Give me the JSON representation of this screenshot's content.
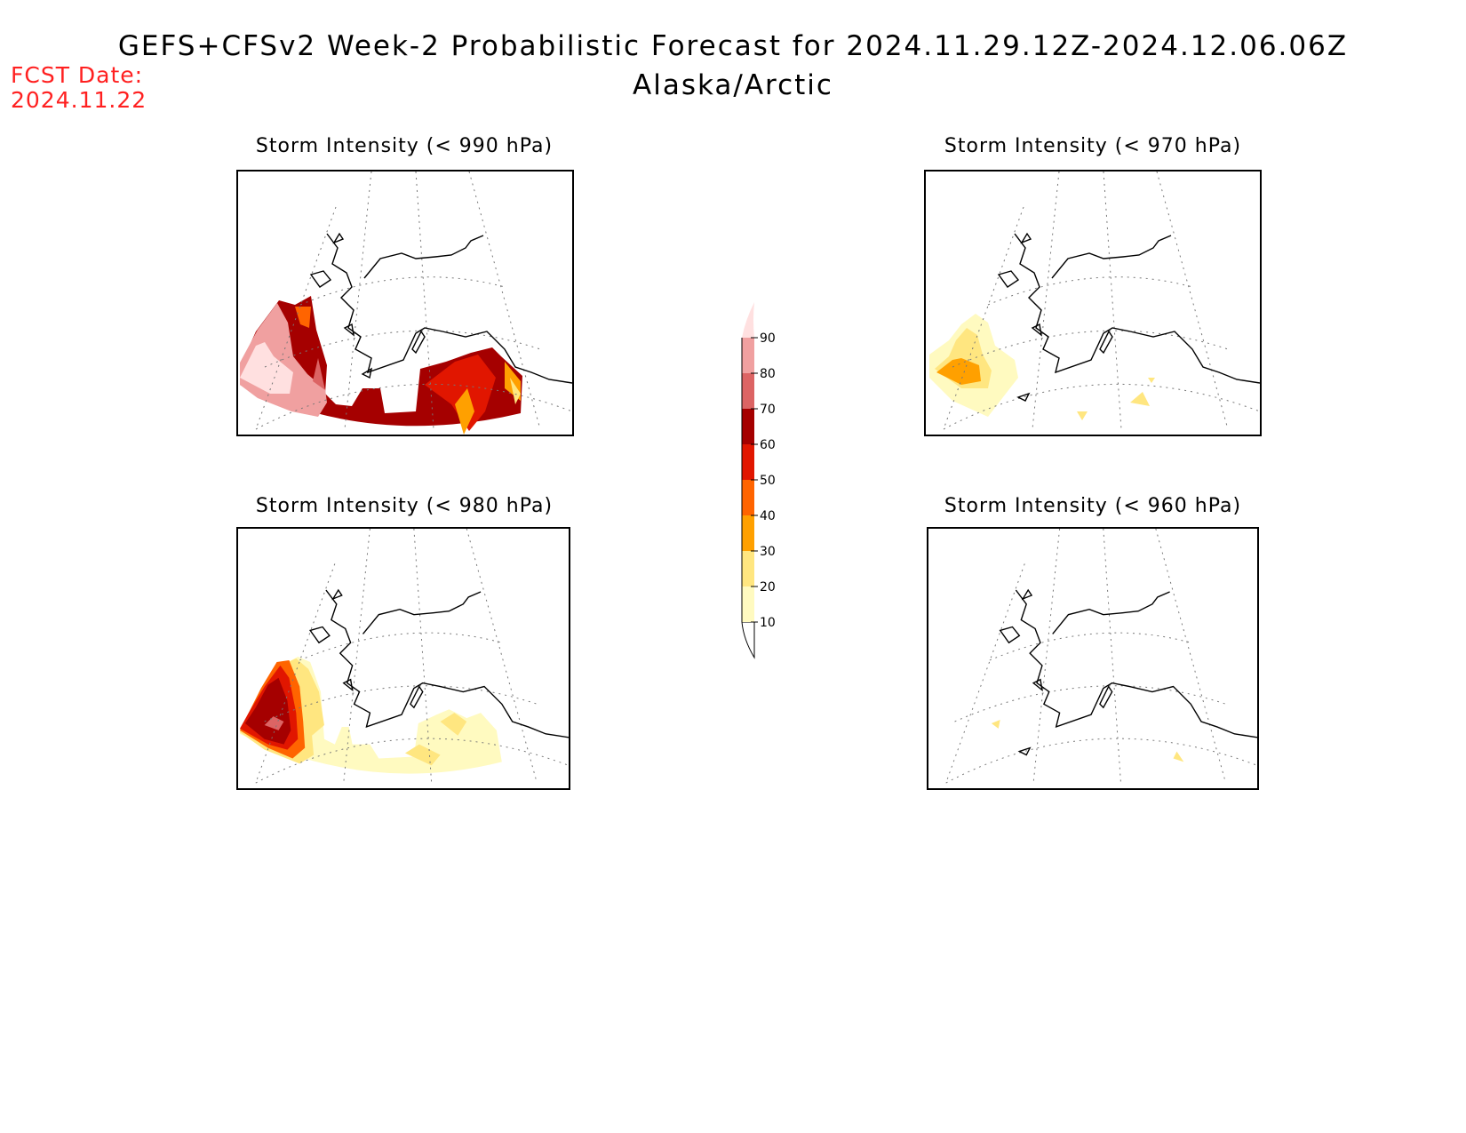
{
  "header": {
    "title": "GEFS+CFSv2 Week-2 Probabilistic Forecast for 2024.11.29.12Z-2024.12.06.06Z",
    "subtitle": "Alaska/Arctic",
    "fcst_label": "FCST Date:",
    "fcst_date": "2024.11.22"
  },
  "panels": [
    {
      "id": "p990",
      "title": "Storm Intensity (< 990 hPa)",
      "intensity_level": "high"
    },
    {
      "id": "p970",
      "title": "Storm Intensity (< 970 hPa)",
      "intensity_level": "low"
    },
    {
      "id": "p980",
      "title": "Storm Intensity (< 980 hPa)",
      "intensity_level": "medium"
    },
    {
      "id": "p960",
      "title": "Storm Intensity (< 960 hPa)",
      "intensity_level": "minimal"
    }
  ],
  "colorbar": {
    "levels": [
      "10",
      "20",
      "30",
      "40",
      "50",
      "60",
      "70",
      "80",
      "90"
    ],
    "colors": [
      "#fffac0",
      "#ffe680",
      "#ffa000",
      "#ff6400",
      "#e11600",
      "#a50000",
      "#dc6464",
      "#f0a0a0",
      "#ffe0e0"
    ]
  }
}
